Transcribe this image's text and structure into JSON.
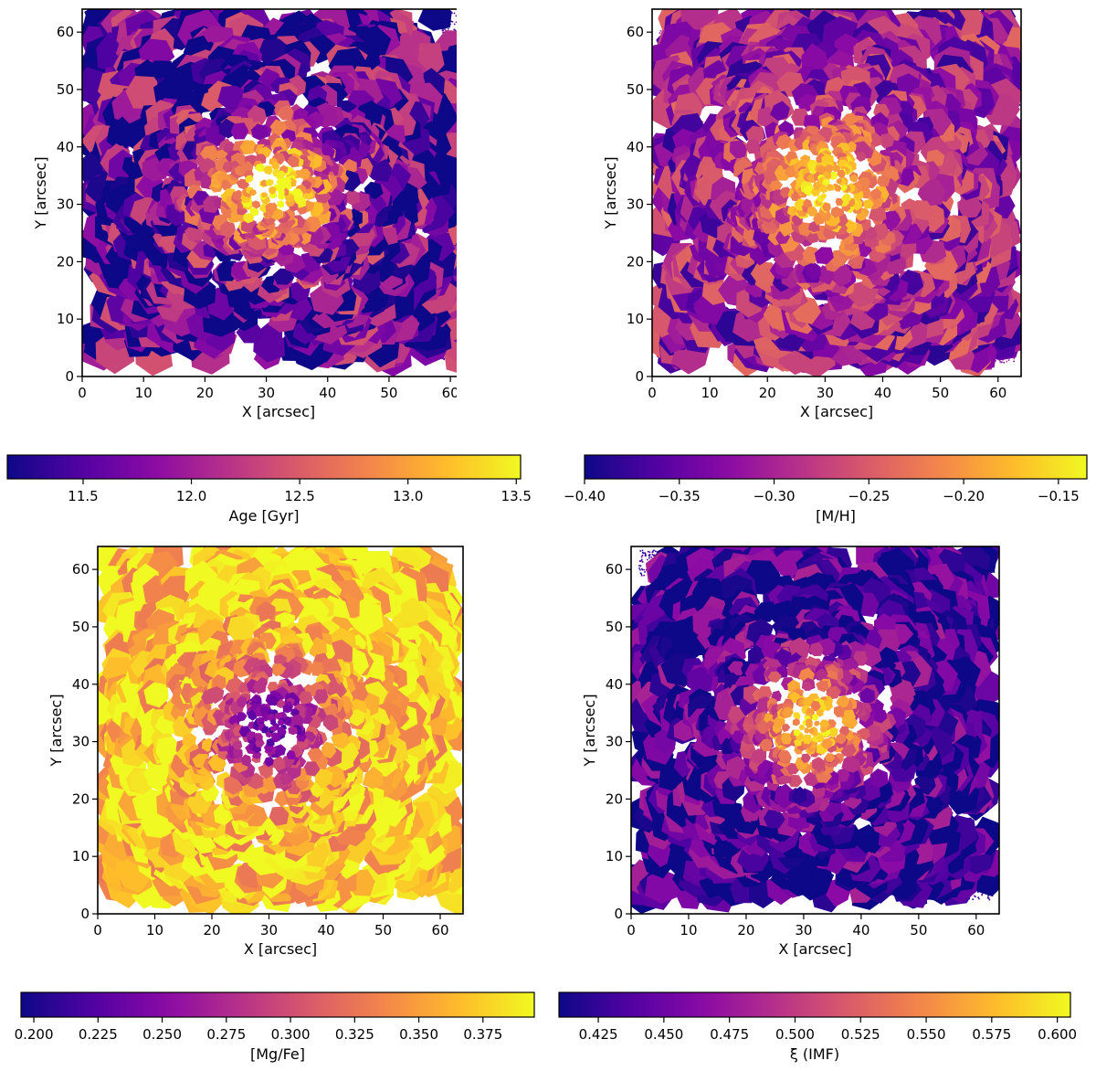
{
  "figure_title": "",
  "colormap": "plasma",
  "colormap_stops": [
    "#0d0887",
    "#5302a3",
    "#8b0aa5",
    "#b83289",
    "#db5c68",
    "#f48849",
    "#febd2a",
    "#f0f921"
  ],
  "chart_data": [
    {
      "type": "heatmap",
      "name": "age",
      "title": "",
      "xlabel": "X [arcsec]",
      "ylabel": "Y [arcsec]",
      "xlim": [
        0,
        64
      ],
      "ylim": [
        0,
        64
      ],
      "xticks": [
        "0",
        "10",
        "20",
        "30",
        "40",
        "50",
        "60"
      ],
      "yticks": [
        "0",
        "10",
        "20",
        "30",
        "40",
        "50",
        "60"
      ],
      "center": [
        30.8,
        32.8
      ],
      "center_value": 13.4,
      "edge_value": 11.55,
      "noise": 0.5,
      "clip_corners": true,
      "colorbar": {
        "label": "Age [Gyr]",
        "range": [
          11.15,
          13.52
        ],
        "ticks": [
          11.5,
          12.0,
          12.5,
          13.0,
          13.5
        ],
        "tick_labels": [
          "11.5",
          "12.0",
          "12.5",
          "13.0",
          "13.5"
        ]
      }
    },
    {
      "type": "heatmap",
      "name": "metallicity",
      "title": "",
      "xlabel": "X [arcsec]",
      "ylabel": "Y [arcsec]",
      "xlim": [
        0,
        64
      ],
      "ylim": [
        0,
        64
      ],
      "xticks": [
        "0",
        "10",
        "20",
        "30",
        "40",
        "50",
        "60"
      ],
      "yticks": [
        "0",
        "10",
        "20",
        "30",
        "40",
        "50",
        "60"
      ],
      "center": [
        30.8,
        32.8
      ],
      "center_value": -0.16,
      "edge_value": -0.31,
      "noise": 0.5,
      "clip_corners": true,
      "colorbar": {
        "label": "[M/H]",
        "range": [
          -0.4,
          -0.135
        ],
        "ticks": [
          -0.4,
          -0.35,
          -0.3,
          -0.25,
          -0.2,
          -0.15
        ],
        "tick_labels": [
          "−0.40",
          "−0.35",
          "−0.30",
          "−0.25",
          "−0.20",
          "−0.15"
        ]
      }
    },
    {
      "type": "heatmap",
      "name": "alpha",
      "title": "",
      "xlabel": "X [arcsec]",
      "ylabel": "Y [arcsec]",
      "xlim": [
        0,
        64
      ],
      "ylim": [
        0,
        64
      ],
      "xticks": [
        "0",
        "10",
        "20",
        "30",
        "40",
        "50",
        "60"
      ],
      "yticks": [
        "0",
        "10",
        "20",
        "30",
        "40",
        "50",
        "60"
      ],
      "center": [
        30.5,
        32.5
      ],
      "center_value": 0.235,
      "edge_value": 0.375,
      "noise": 0.35,
      "clip_corners": false,
      "colorbar": {
        "label": "[Mg/Fe]",
        "range": [
          0.195,
          0.395
        ],
        "ticks": [
          0.2,
          0.225,
          0.25,
          0.275,
          0.3,
          0.325,
          0.35,
          0.375
        ],
        "tick_labels": [
          "0.200",
          "0.225",
          "0.250",
          "0.275",
          "0.300",
          "0.325",
          "0.350",
          "0.375"
        ]
      }
    },
    {
      "type": "heatmap",
      "name": "imf",
      "title": "",
      "xlabel": "X [arcsec]",
      "ylabel": "Y [arcsec]",
      "xlim": [
        0,
        64
      ],
      "ylim": [
        0,
        64
      ],
      "xticks": [
        "0",
        "10",
        "20",
        "30",
        "40",
        "50",
        "60"
      ],
      "yticks": [
        "0",
        "10",
        "20",
        "30",
        "40",
        "50",
        "60"
      ],
      "center": [
        31.0,
        33.0
      ],
      "center_value": 0.585,
      "edge_value": 0.428,
      "noise": 0.35,
      "clip_corners": true,
      "colorbar": {
        "label": "ξ (IMF)",
        "range": [
          0.41,
          0.605
        ],
        "ticks": [
          0.425,
          0.45,
          0.475,
          0.5,
          0.525,
          0.55,
          0.575,
          0.6
        ],
        "tick_labels": [
          "0.425",
          "0.450",
          "0.475",
          "0.500",
          "0.525",
          "0.550",
          "0.575",
          "0.600"
        ]
      }
    }
  ]
}
